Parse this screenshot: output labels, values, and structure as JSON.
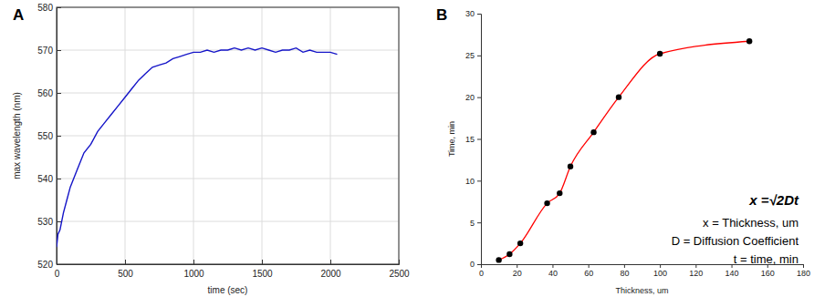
{
  "chart_data": [
    {
      "type": "line",
      "title": "A",
      "x_label": "time (sec)",
      "y_label": "max wavelength (nm)",
      "x": [
        0,
        10,
        25,
        50,
        75,
        100,
        150,
        200,
        250,
        300,
        350,
        400,
        450,
        500,
        550,
        600,
        650,
        700,
        750,
        800,
        850,
        900,
        950,
        1000,
        1050,
        1100,
        1150,
        1200,
        1250,
        1300,
        1350,
        1400,
        1450,
        1500,
        1550,
        1600,
        1650,
        1700,
        1750,
        1800,
        1850,
        1900,
        1950,
        2000,
        2050
      ],
      "values": [
        524,
        527,
        528,
        532,
        535,
        538,
        542,
        546,
        548,
        551,
        553,
        555,
        557,
        559,
        561,
        563,
        564.5,
        566,
        566.5,
        567,
        568,
        568.5,
        569,
        569.5,
        569.5,
        570,
        569.5,
        570,
        570,
        570.5,
        570,
        570.5,
        570,
        570.5,
        570,
        569.5,
        570,
        570,
        570.5,
        569.5,
        570,
        569.5,
        569.5,
        569.5,
        569
      ],
      "color": "#1515c8",
      "xlim": [
        0,
        2500
      ],
      "xticks": [
        0,
        500,
        1000,
        1500,
        2000,
        2500
      ],
      "ylim": [
        520,
        580
      ],
      "yticks": [
        520,
        530,
        540,
        550,
        560,
        570,
        580
      ],
      "grid": true
    },
    {
      "type": "line",
      "title": "B",
      "x_label": "Thickness, um",
      "y_label": "Time, min",
      "x": [
        10,
        16,
        22,
        37,
        44,
        50,
        63,
        77,
        100,
        150
      ],
      "values": [
        0.5,
        1.2,
        2.5,
        7.3,
        8.5,
        11.7,
        15.8,
        20,
        25.2,
        26.7
      ],
      "color": "#ff0000",
      "marker": "circle",
      "xlim": [
        0,
        180
      ],
      "xticks": [
        0,
        20,
        40,
        60,
        80,
        100,
        120,
        140,
        160,
        180
      ],
      "ylim": [
        0,
        30
      ],
      "yticks": [
        0,
        5,
        10,
        15,
        20,
        25,
        30
      ],
      "grid": false,
      "annotations": [
        "x =√2Dt",
        "x = Thickness, um",
        "D = Diffusion Coefficient",
        "t = time, min"
      ]
    }
  ]
}
